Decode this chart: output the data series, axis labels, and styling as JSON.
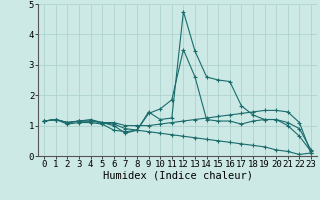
{
  "title": "",
  "xlabel": "Humidex (Indice chaleur)",
  "xlim": [
    -0.5,
    23.5
  ],
  "ylim": [
    0,
    5
  ],
  "xticks": [
    0,
    1,
    2,
    3,
    4,
    5,
    6,
    7,
    8,
    9,
    10,
    11,
    12,
    13,
    14,
    15,
    16,
    17,
    18,
    19,
    20,
    21,
    22,
    23
  ],
  "yticks": [
    0,
    1,
    2,
    3,
    4,
    5
  ],
  "bg_color": "#cce9e5",
  "grid_color": "#aacfcc",
  "line_color": "#1a6b6b",
  "series": [
    [
      1.15,
      1.2,
      1.05,
      1.1,
      1.1,
      1.05,
      0.85,
      0.8,
      0.85,
      1.45,
      1.2,
      1.25,
      4.75,
      3.45,
      2.6,
      2.5,
      2.45,
      1.65,
      1.35,
      1.2,
      1.2,
      1.0,
      0.65,
      0.15
    ],
    [
      1.15,
      1.2,
      1.1,
      1.15,
      1.2,
      1.1,
      1.0,
      0.75,
      0.85,
      1.4,
      1.55,
      1.85,
      3.5,
      2.6,
      1.2,
      1.15,
      1.15,
      1.05,
      1.15,
      1.2,
      1.2,
      1.1,
      0.9,
      0.2
    ],
    [
      1.15,
      1.2,
      1.1,
      1.15,
      1.15,
      1.1,
      1.1,
      1.0,
      1.0,
      1.0,
      1.05,
      1.1,
      1.15,
      1.2,
      1.25,
      1.3,
      1.35,
      1.4,
      1.45,
      1.5,
      1.5,
      1.45,
      1.1,
      0.1
    ],
    [
      1.15,
      1.2,
      1.1,
      1.15,
      1.15,
      1.1,
      1.05,
      0.9,
      0.85,
      0.8,
      0.75,
      0.7,
      0.65,
      0.6,
      0.55,
      0.5,
      0.45,
      0.4,
      0.35,
      0.3,
      0.2,
      0.15,
      0.05,
      0.1
    ]
  ],
  "tick_fontsize": 6.5,
  "xlabel_fontsize": 7.5
}
